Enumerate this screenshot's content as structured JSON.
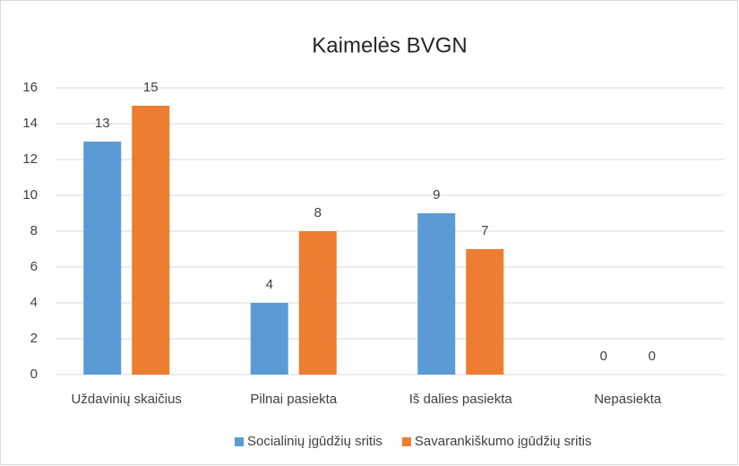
{
  "chart_data": {
    "type": "bar",
    "title": "Kaimelės BVGN",
    "categories": [
      "Uždavinių skaičius",
      "Pilnai pasiekta",
      "Iš dalies pasiekta",
      "Nepasiekta"
    ],
    "series": [
      {
        "name": "Socialinių įgūdžių sritis",
        "color": "#5b9bd5",
        "values": [
          13,
          4,
          9,
          0
        ]
      },
      {
        "name": "Savarankiškumo įgūdžių sritis",
        "color": "#ed7d31",
        "values": [
          15,
          8,
          7,
          0
        ]
      }
    ],
    "ylim": [
      0,
      16
    ],
    "yticks": [
      0,
      2,
      4,
      6,
      8,
      10,
      12,
      14,
      16
    ],
    "grid": true,
    "legend": "bottom"
  }
}
